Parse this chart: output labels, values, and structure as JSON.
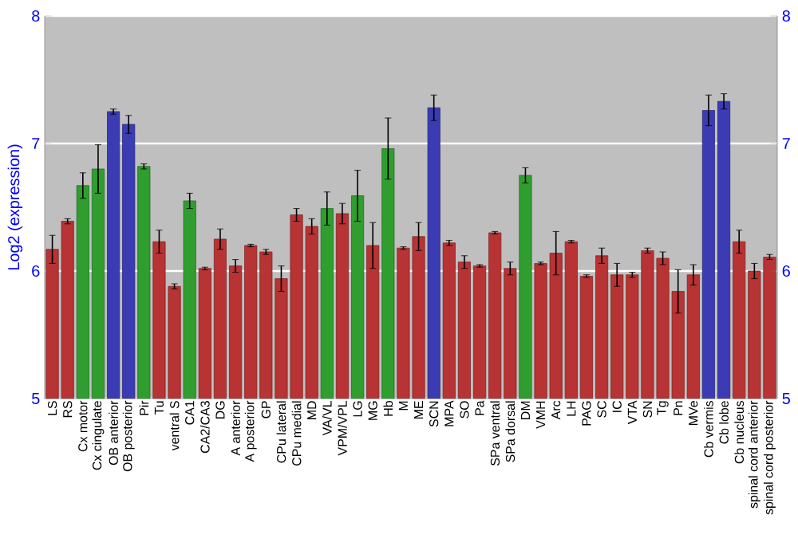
{
  "chart_data": {
    "type": "bar",
    "ylabel": "Log2 (expression)",
    "categories": [
      "LS",
      "RS",
      "Cx motor",
      "Cx cingulate",
      "OB anterior",
      "OB posterior",
      "Pir",
      "Tu",
      "ventral S",
      "CA1",
      "CA2/CA3",
      "DG",
      "A anterior",
      "A posterior",
      "GP",
      "CPu lateral",
      "CPu medial",
      "MD",
      "VA/VL",
      "VPM/VPL",
      "LG",
      "MG",
      "Hb",
      "M",
      "ME",
      "SCN",
      "MPA",
      "SO",
      "Pa",
      "SPa ventral",
      "SPa dorsal",
      "DM",
      "VMH",
      "Arc",
      "LH",
      "PAG",
      "SC",
      "IC",
      "VTA",
      "SN",
      "Tg",
      "Pn",
      "MVe",
      "Cb vermis",
      "Cb lobe",
      "Cb nucleus",
      "spinal cord anterior",
      "spinal cord posterior"
    ],
    "values": [
      6.17,
      6.39,
      6.67,
      6.8,
      7.25,
      7.15,
      6.82,
      6.23,
      5.88,
      6.55,
      6.02,
      6.25,
      6.04,
      6.2,
      6.15,
      5.94,
      6.44,
      6.35,
      6.49,
      6.45,
      6.59,
      6.2,
      6.96,
      6.18,
      6.27,
      7.28,
      6.22,
      6.07,
      6.04,
      6.3,
      6.02,
      6.75,
      6.06,
      6.14,
      6.23,
      5.96,
      6.12,
      5.97,
      5.97,
      6.16,
      6.1,
      5.84,
      5.97,
      7.26,
      7.33,
      6.23,
      6.0,
      6.11
    ],
    "errors": [
      0.11,
      0.02,
      0.1,
      0.19,
      0.02,
      0.07,
      0.02,
      0.09,
      0.02,
      0.06,
      0.01,
      0.08,
      0.05,
      0.01,
      0.02,
      0.1,
      0.05,
      0.06,
      0.13,
      0.08,
      0.2,
      0.18,
      0.24,
      0.01,
      0.11,
      0.1,
      0.02,
      0.05,
      0.01,
      0.01,
      0.05,
      0.06,
      0.01,
      0.17,
      0.01,
      0.01,
      0.06,
      0.09,
      0.02,
      0.02,
      0.05,
      0.17,
      0.08,
      0.12,
      0.06,
      0.09,
      0.06,
      0.02
    ],
    "colors": [
      "#b83333",
      "#b83333",
      "#2f9e2f",
      "#2f9e2f",
      "#3b3bb3",
      "#3b3bb3",
      "#2f9e2f",
      "#b83333",
      "#b83333",
      "#2f9e2f",
      "#b83333",
      "#b83333",
      "#b83333",
      "#b83333",
      "#b83333",
      "#b83333",
      "#b83333",
      "#b83333",
      "#2f9e2f",
      "#b83333",
      "#2f9e2f",
      "#b83333",
      "#2f9e2f",
      "#b83333",
      "#b83333",
      "#3b3bb3",
      "#b83333",
      "#b83333",
      "#b83333",
      "#b83333",
      "#b83333",
      "#2f9e2f",
      "#b83333",
      "#b83333",
      "#b83333",
      "#b83333",
      "#b83333",
      "#b83333",
      "#b83333",
      "#b83333",
      "#b83333",
      "#b83333",
      "#b83333",
      "#3b3bb3",
      "#3b3bb3",
      "#b83333",
      "#b83333",
      "#b83333"
    ],
    "ylim": [
      5,
      8
    ],
    "yticks": [
      5,
      6,
      7,
      8
    ],
    "y2lim": [
      5,
      8
    ],
    "y2ticks": [
      5,
      6,
      7,
      8
    ],
    "grid": "y"
  }
}
